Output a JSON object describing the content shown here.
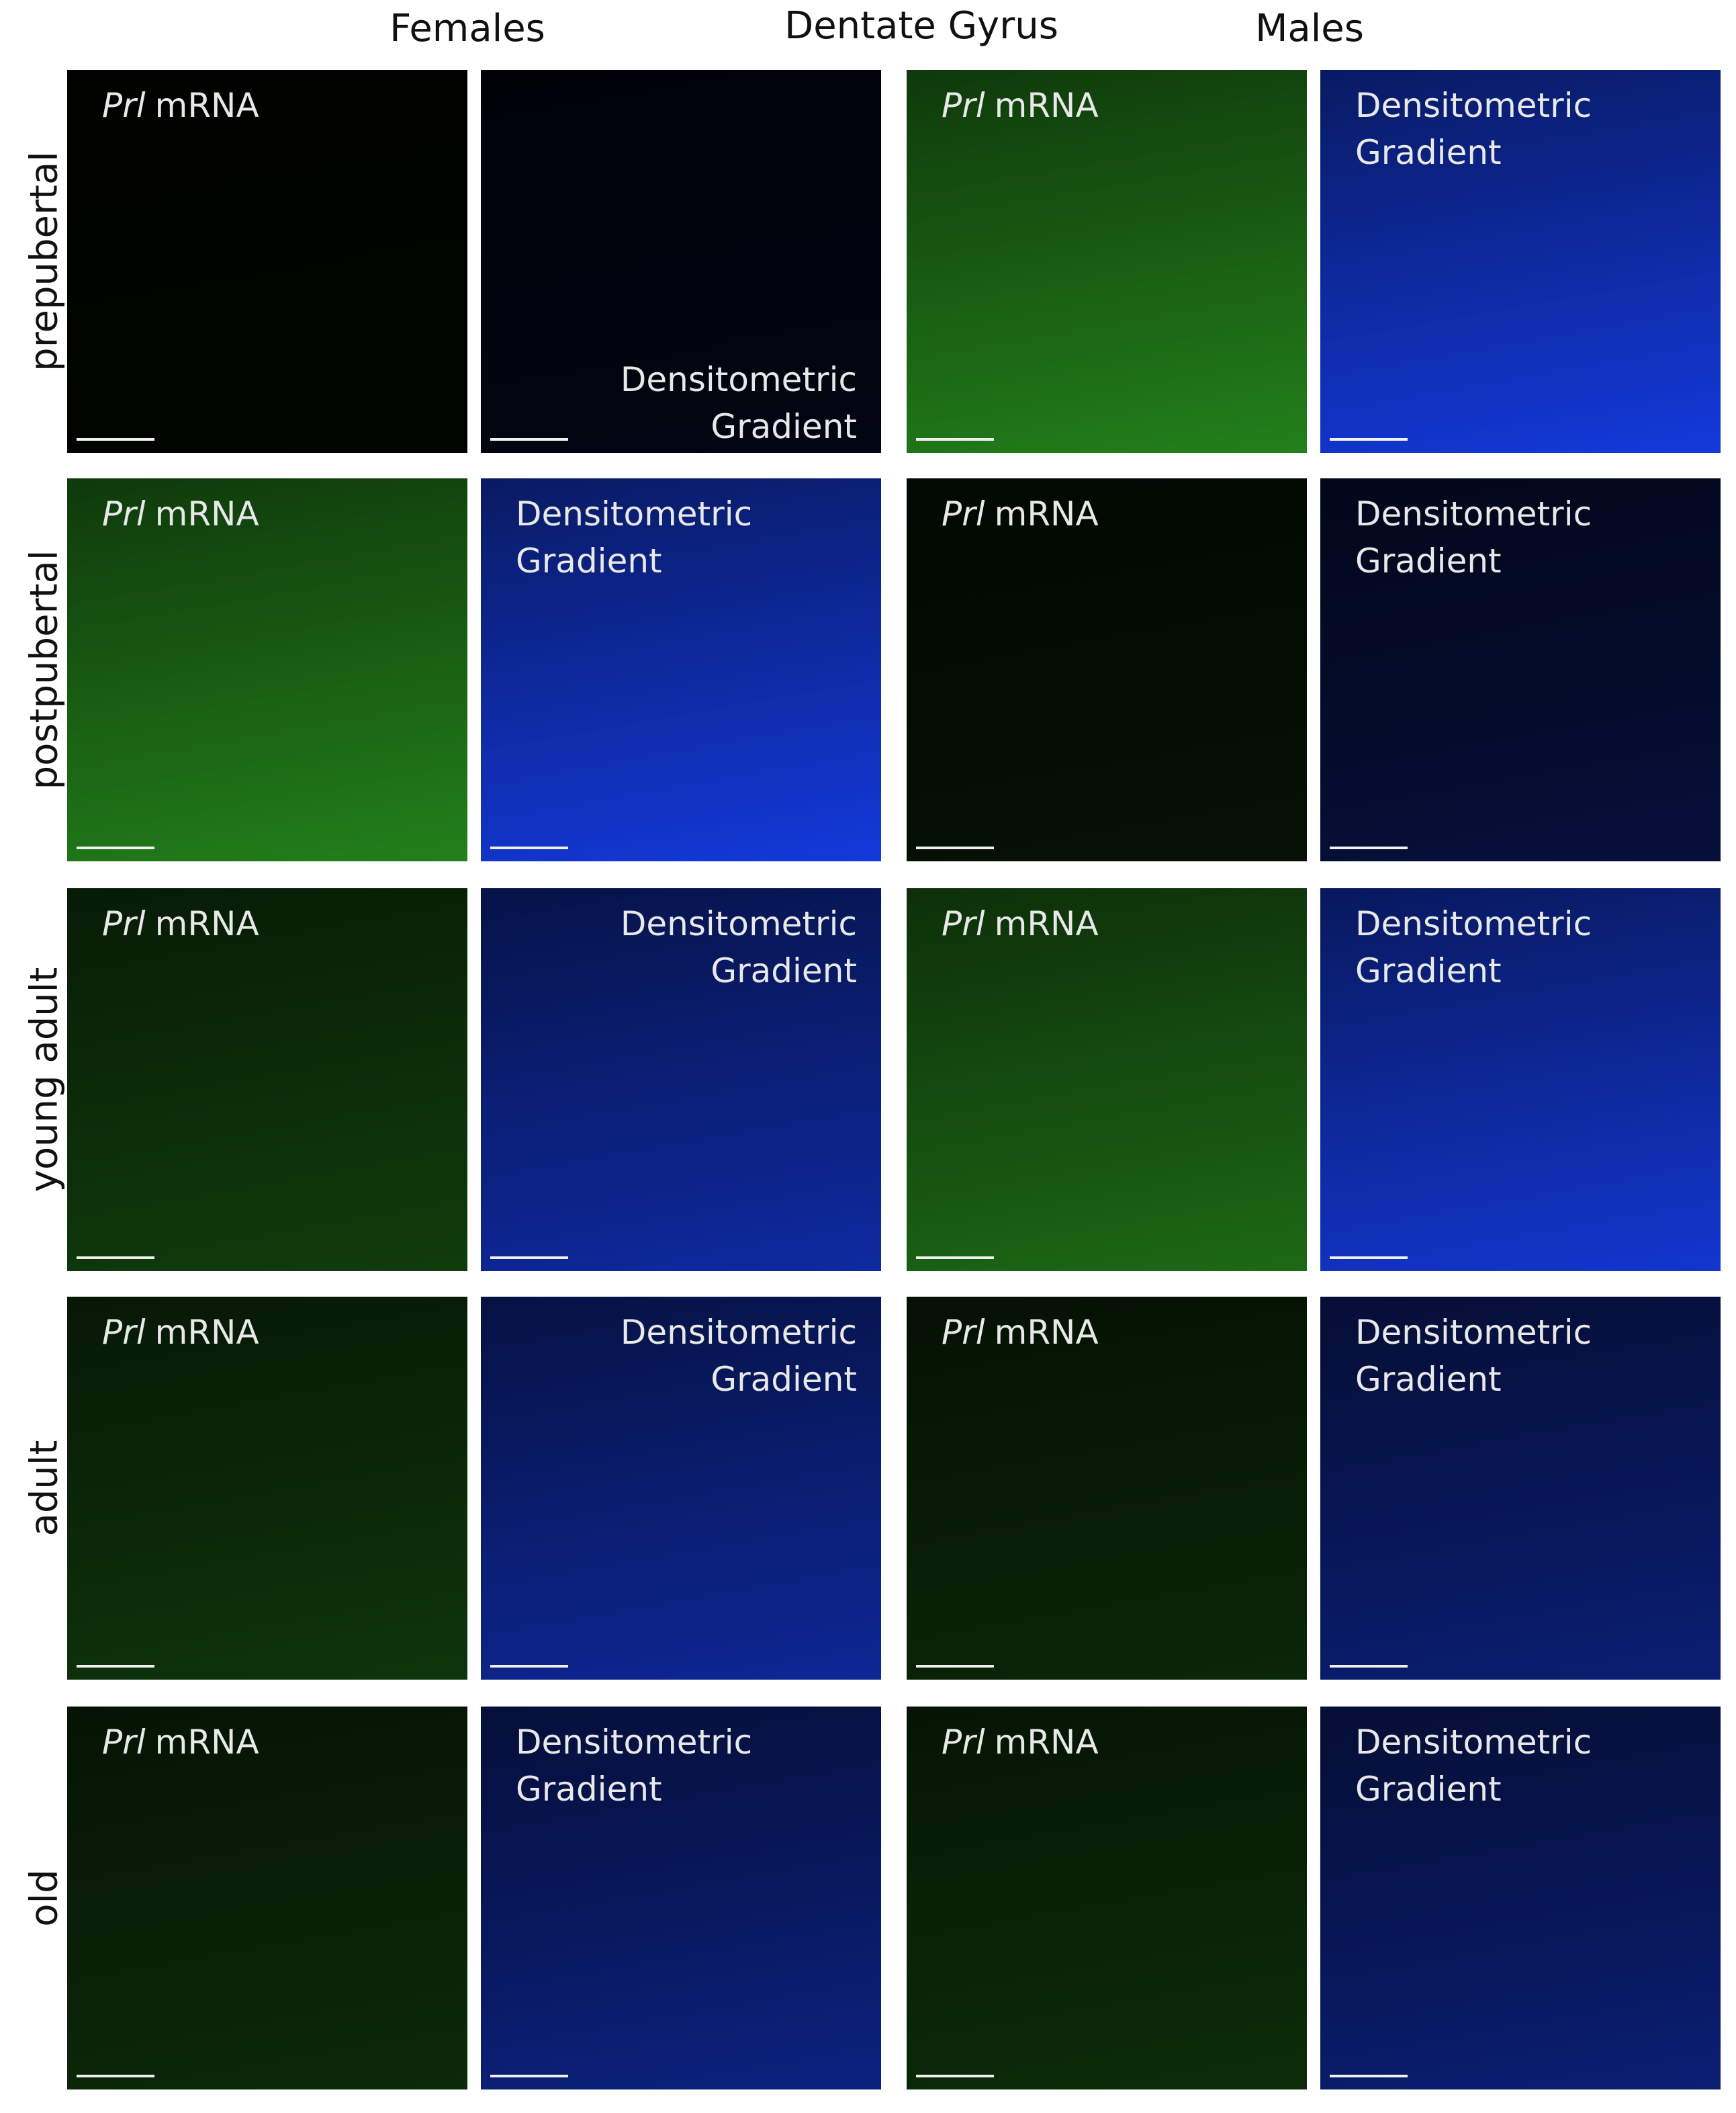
{
  "header": {
    "left": "Females",
    "center": "Dentate Gyrus",
    "right": "Males"
  },
  "rows": [
    {
      "label": "prepubertal",
      "panels": [
        {
          "gene": "Prl",
          "text": "mRNA"
        },
        {
          "lines": [
            "Densitometric",
            "Gradient"
          ]
        },
        {
          "gene": "Prl",
          "text": "mRNA"
        },
        {
          "lines": [
            "Densitometric",
            "Gradient"
          ]
        }
      ]
    },
    {
      "label": "postpubertal",
      "panels": [
        {
          "gene": "Prl",
          "text": "mRNA"
        },
        {
          "lines": [
            "Densitometric",
            "Gradient"
          ]
        },
        {
          "gene": "Prl",
          "text": "mRNA"
        },
        {
          "lines": [
            "Densitometric",
            "Gradient"
          ]
        }
      ]
    },
    {
      "label": "young adult",
      "panels": [
        {
          "gene": "Prl",
          "text": "mRNA"
        },
        {
          "lines": [
            "Densitometric",
            "Gradient"
          ]
        },
        {
          "gene": "Prl",
          "text": "mRNA"
        },
        {
          "lines": [
            "Densitometric",
            "Gradient"
          ]
        }
      ]
    },
    {
      "label": "adult",
      "panels": [
        {
          "gene": "Prl",
          "text": "mRNA"
        },
        {
          "lines": [
            "Densitometric",
            "Gradient"
          ]
        },
        {
          "gene": "Prl",
          "text": "mRNA"
        },
        {
          "lines": [
            "Densitometric",
            "Gradient"
          ]
        }
      ]
    },
    {
      "label": "old",
      "panels": [
        {
          "gene": "Prl",
          "text": "mRNA"
        },
        {
          "lines": [
            "Densitometric",
            "Gradient"
          ]
        },
        {
          "gene": "Prl",
          "text": "mRNA"
        },
        {
          "lines": [
            "Densitometric",
            "Gradient"
          ]
        }
      ]
    }
  ]
}
